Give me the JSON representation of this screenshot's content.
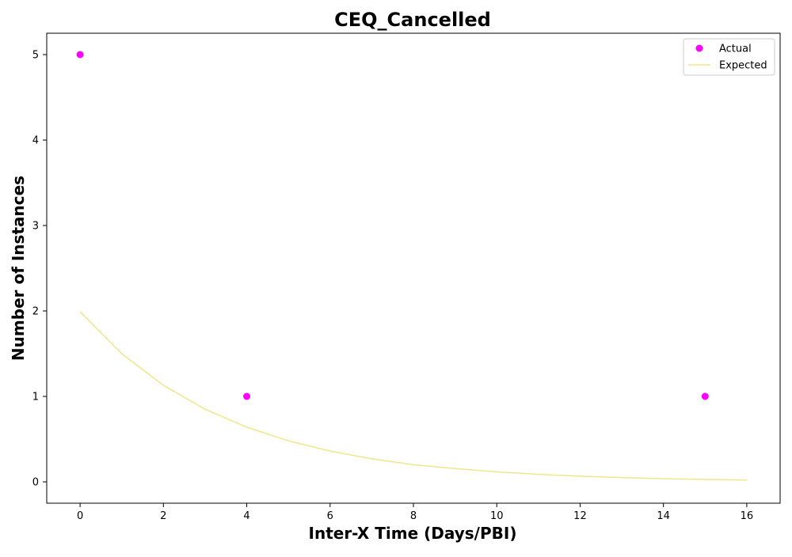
{
  "chart_data": {
    "type": "scatter",
    "title": "CEQ_Cancelled",
    "xlabel": "Inter-X Time (Days/PBI)",
    "ylabel": "Number of Instances",
    "xlim": [
      -0.8,
      16.8
    ],
    "ylim": [
      -0.25,
      5.25
    ],
    "xticks": [
      0,
      2,
      4,
      6,
      8,
      10,
      12,
      14,
      16
    ],
    "yticks": [
      0,
      1,
      2,
      3,
      4,
      5
    ],
    "grid": false,
    "legend_position": "top-right",
    "series": [
      {
        "name": "Actual",
        "kind": "scatter",
        "color": "#ff00ff",
        "points": [
          {
            "x": 0,
            "y": 5
          },
          {
            "x": 4,
            "y": 1
          },
          {
            "x": 15,
            "y": 1
          }
        ]
      },
      {
        "name": "Expected",
        "kind": "line",
        "color": "#f0e68c",
        "points": [
          {
            "x": 0,
            "y": 1.99
          },
          {
            "x": 1,
            "y": 1.5
          },
          {
            "x": 2,
            "y": 1.13
          },
          {
            "x": 3,
            "y": 0.85
          },
          {
            "x": 4,
            "y": 0.64
          },
          {
            "x": 5,
            "y": 0.48
          },
          {
            "x": 6,
            "y": 0.36
          },
          {
            "x": 7,
            "y": 0.27
          },
          {
            "x": 8,
            "y": 0.2
          },
          {
            "x": 9,
            "y": 0.155
          },
          {
            "x": 10,
            "y": 0.117
          },
          {
            "x": 11,
            "y": 0.088
          },
          {
            "x": 12,
            "y": 0.066
          },
          {
            "x": 13,
            "y": 0.05
          },
          {
            "x": 14,
            "y": 0.037
          },
          {
            "x": 15,
            "y": 0.028
          },
          {
            "x": 16,
            "y": 0.021
          }
        ]
      }
    ]
  }
}
